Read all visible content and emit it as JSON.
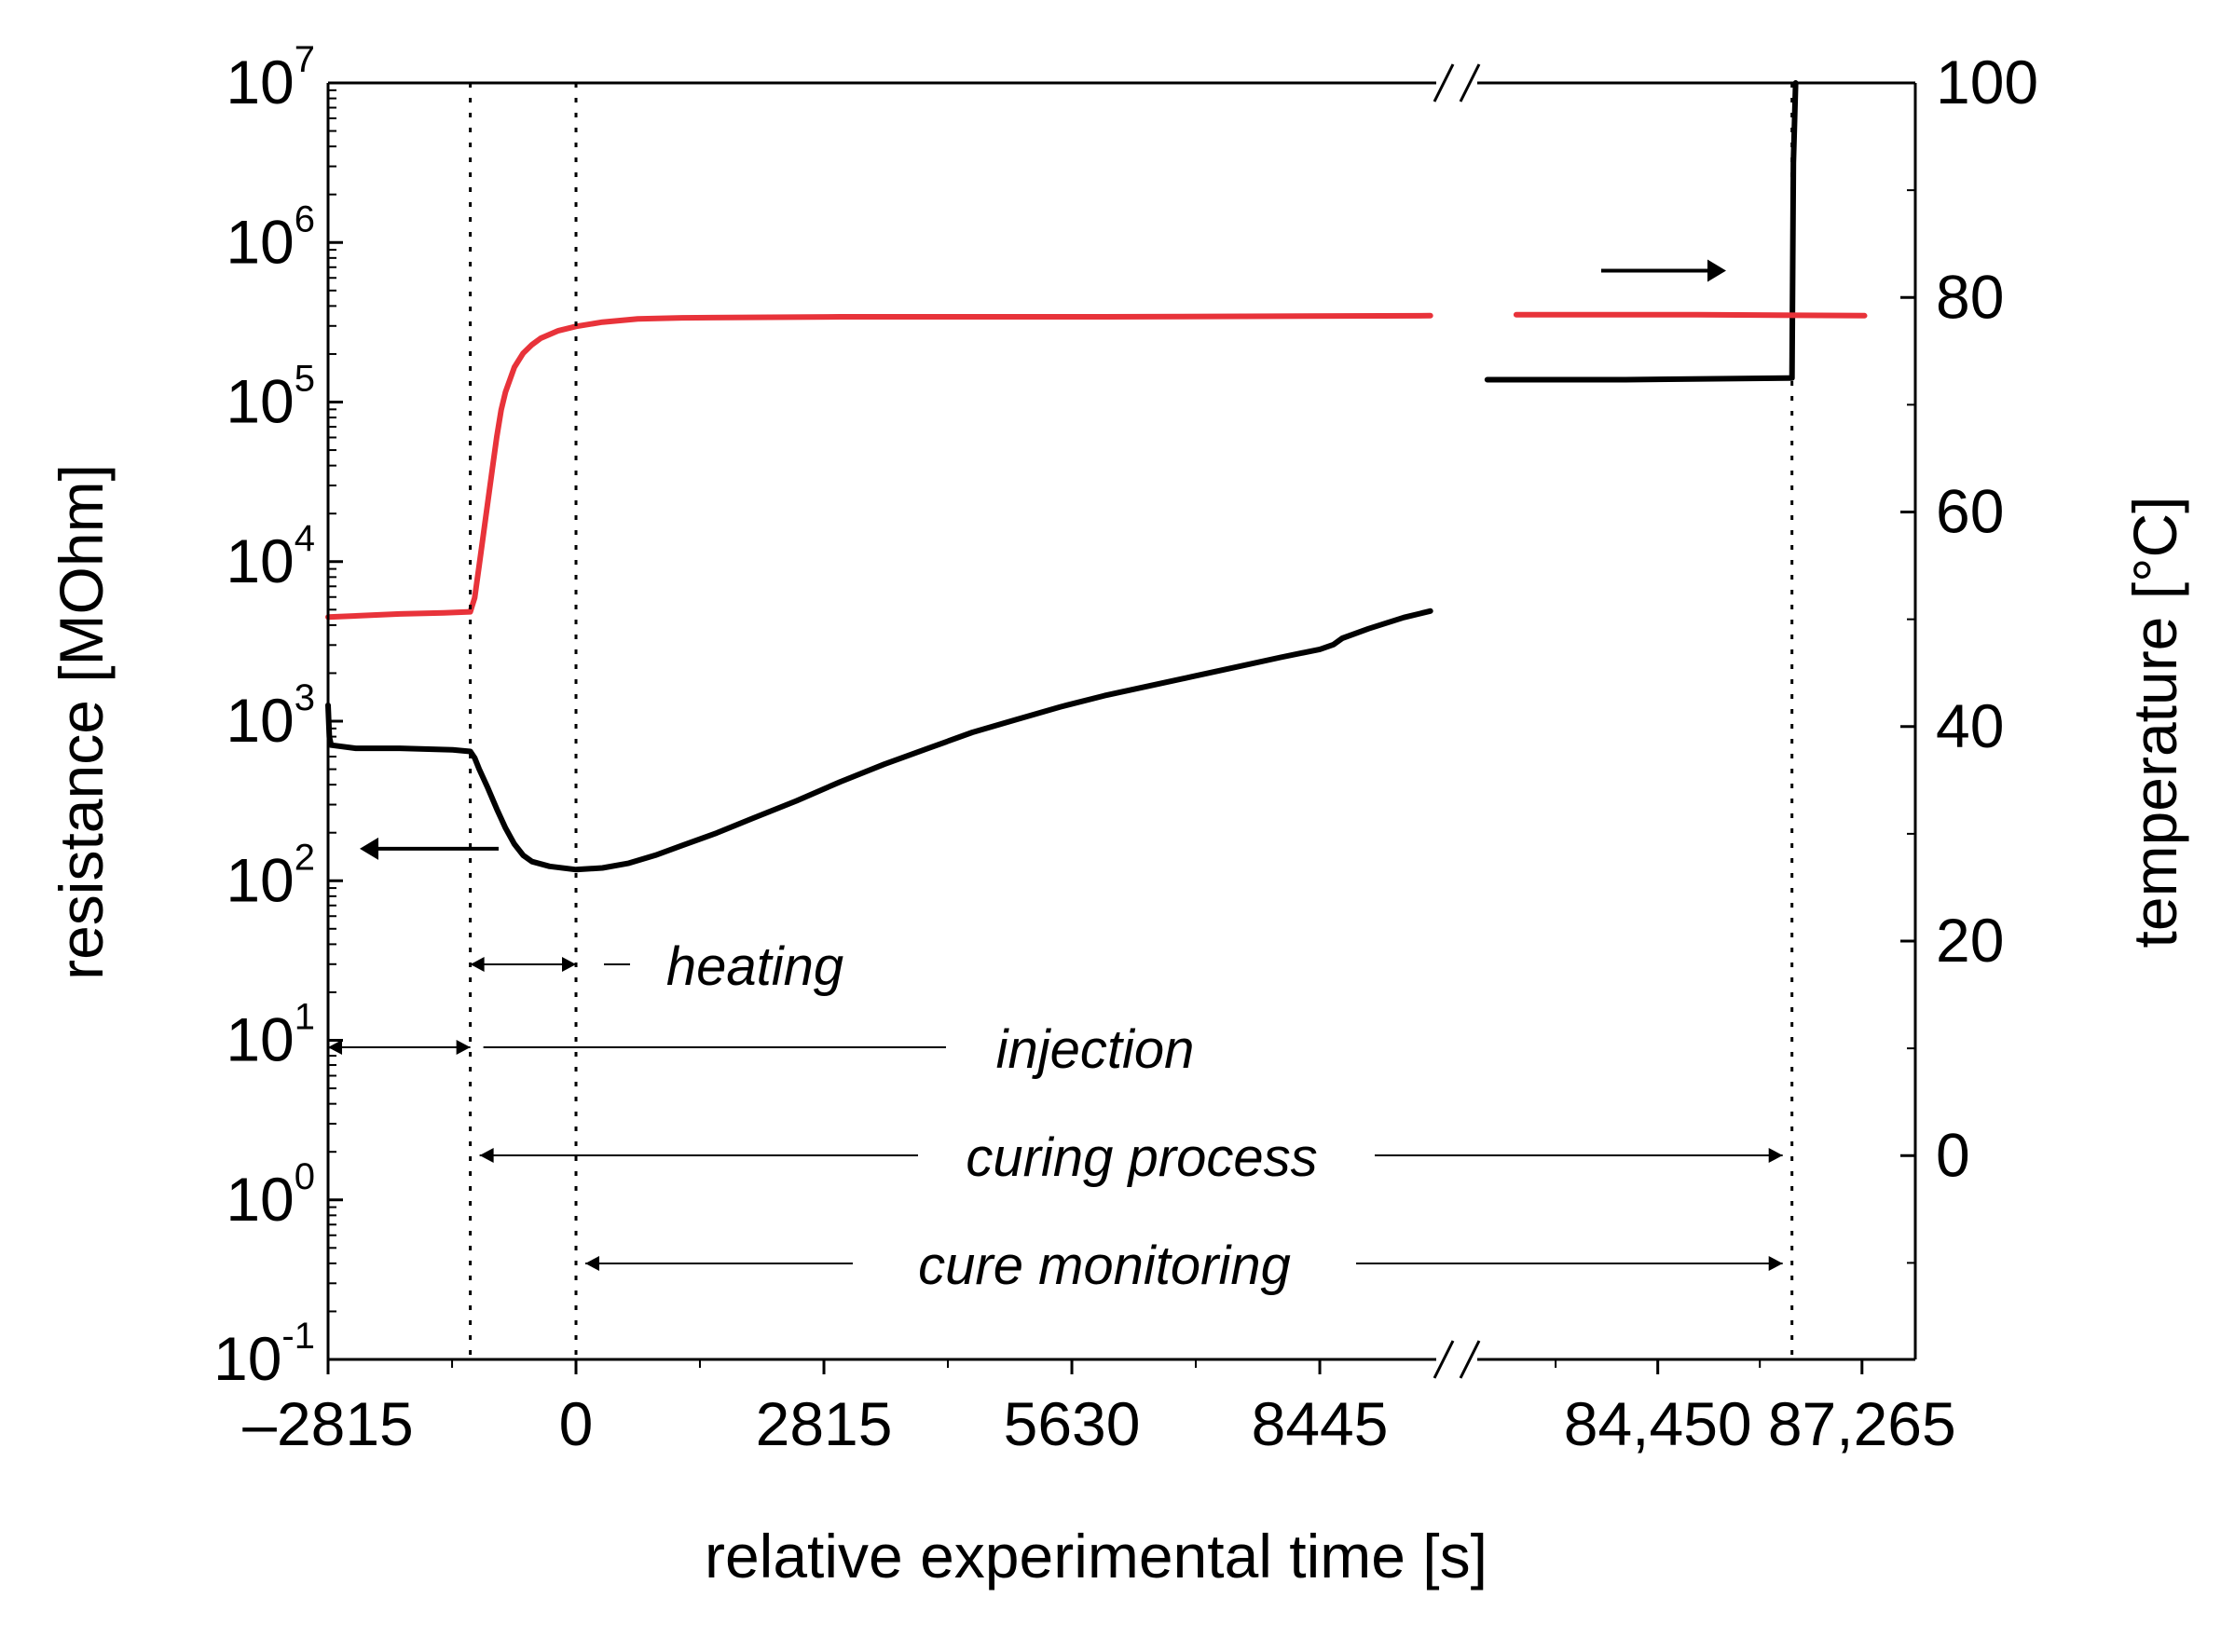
{
  "chart_data": {
    "type": "line",
    "xlabel": "relative experimental time [s]",
    "ylabel_left": "resistance [MOhm]",
    "ylabel_right": "temperature [°C]",
    "y_left_scale": "log",
    "y_left_range_exponent": [
      -1,
      7
    ],
    "y_left_ticks": [
      {
        "base": "10",
        "exp": "-1",
        "value": -1
      },
      {
        "base": "10",
        "exp": "0",
        "value": 0
      },
      {
        "base": "10",
        "exp": "1",
        "value": 1
      },
      {
        "base": "10",
        "exp": "2",
        "value": 2
      },
      {
        "base": "10",
        "exp": "3",
        "value": 3
      },
      {
        "base": "10",
        "exp": "4",
        "value": 4
      },
      {
        "base": "10",
        "exp": "5",
        "value": 5
      },
      {
        "base": "10",
        "exp": "6",
        "value": 6
      },
      {
        "base": "10",
        "exp": "7",
        "value": 7
      }
    ],
    "y_right_range": [
      -19,
      100
    ],
    "y_right_ticks": [
      {
        "label": "0",
        "value": 0
      },
      {
        "label": "20",
        "value": 20
      },
      {
        "label": "40",
        "value": 40
      },
      {
        "label": "60",
        "value": 60
      },
      {
        "label": "80",
        "value": 80
      },
      {
        "label": "100",
        "value": 100
      }
    ],
    "x_segments": [
      {
        "range": [
          -2815,
          10000
        ]
      },
      {
        "range": [
          82000,
          88000
        ]
      }
    ],
    "x_ticks": [
      {
        "label": "–2815",
        "value": -2815
      },
      {
        "label": "0",
        "value": 0
      },
      {
        "label": "2815",
        "value": 2815
      },
      {
        "label": "5630",
        "value": 5630
      },
      {
        "label": "8445",
        "value": 8445
      },
      {
        "label": "84,450",
        "value": 84450
      },
      {
        "label": "87,265",
        "value": 87265
      }
    ],
    "x_minor_ticks": [
      -1407,
      1407,
      4222,
      7037,
      83042,
      85857
    ],
    "event_lines": [
      -1200,
      0,
      86300
    ],
    "series": [
      {
        "axis": "left",
        "color": "#000000",
        "points": [
          [
            -2815,
            3.1
          ],
          [
            -2800,
            2.9
          ],
          [
            -2780,
            2.85
          ],
          [
            -2500,
            2.83
          ],
          [
            -2000,
            2.83
          ],
          [
            -1400,
            2.82
          ],
          [
            -1200,
            2.81
          ],
          [
            -1150,
            2.77
          ],
          [
            -1100,
            2.7
          ],
          [
            -1000,
            2.58
          ],
          [
            -900,
            2.45
          ],
          [
            -800,
            2.33
          ],
          [
            -700,
            2.23
          ],
          [
            -600,
            2.16
          ],
          [
            -500,
            2.12
          ],
          [
            -300,
            2.09
          ],
          [
            0,
            2.07
          ],
          [
            300,
            2.08
          ],
          [
            600,
            2.11
          ],
          [
            900,
            2.16
          ],
          [
            1200,
            2.22
          ],
          [
            1600,
            2.3
          ],
          [
            2000,
            2.39
          ],
          [
            2500,
            2.5
          ],
          [
            3000,
            2.62
          ],
          [
            3500,
            2.73
          ],
          [
            4000,
            2.83
          ],
          [
            4500,
            2.93
          ],
          [
            5000,
            3.01
          ],
          [
            5500,
            3.09
          ],
          [
            6000,
            3.16
          ],
          [
            6500,
            3.22
          ],
          [
            7000,
            3.28
          ],
          [
            7500,
            3.34
          ],
          [
            8000,
            3.4
          ],
          [
            8445,
            3.45
          ],
          [
            8600,
            3.48
          ],
          [
            8700,
            3.52
          ],
          [
            9000,
            3.58
          ],
          [
            9400,
            3.65
          ],
          [
            9700,
            3.69
          ]
        ]
      },
      {
        "axis": "left",
        "color": "#000000",
        "points": [
          [
            82100,
            5.14
          ],
          [
            84000,
            5.14
          ],
          [
            86250,
            5.15
          ],
          [
            86300,
            5.15
          ],
          [
            86320,
            6.5
          ],
          [
            86350,
            7.0
          ]
        ]
      },
      {
        "axis": "right",
        "color": "#e8333a",
        "points": [
          [
            -2815,
            50.2
          ],
          [
            -2000,
            50.5
          ],
          [
            -1500,
            50.6
          ],
          [
            -1200,
            50.7
          ],
          [
            -1150,
            52
          ],
          [
            -1100,
            55
          ],
          [
            -1050,
            58
          ],
          [
            -1000,
            61
          ],
          [
            -950,
            64
          ],
          [
            -900,
            67
          ],
          [
            -850,
            69.5
          ],
          [
            -800,
            71.2
          ],
          [
            -700,
            73.5
          ],
          [
            -600,
            74.8
          ],
          [
            -500,
            75.6
          ],
          [
            -400,
            76.2
          ],
          [
            -200,
            76.9
          ],
          [
            0,
            77.3
          ],
          [
            300,
            77.7
          ],
          [
            700,
            78.0
          ],
          [
            1200,
            78.1
          ],
          [
            3000,
            78.2
          ],
          [
            6000,
            78.2
          ],
          [
            9700,
            78.3
          ]
        ]
      },
      {
        "axis": "right",
        "color": "#e8333a",
        "points": [
          [
            82500,
            78.4
          ],
          [
            85000,
            78.4
          ],
          [
            87300,
            78.3
          ]
        ]
      }
    ],
    "annotations": [
      {
        "label": "heating"
      },
      {
        "label": "injection"
      },
      {
        "label": "curing process"
      },
      {
        "label": "cure monitoring"
      }
    ]
  }
}
